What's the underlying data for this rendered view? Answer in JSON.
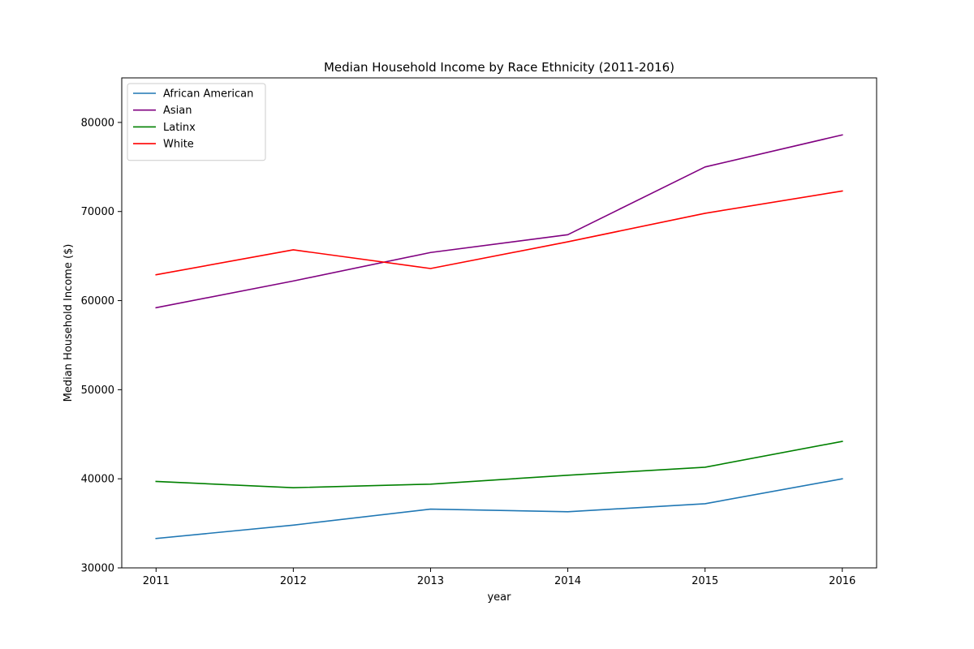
{
  "chart_data": {
    "type": "line",
    "title": "Median Household Income by Race Ethnicity (2011-2016)",
    "xlabel": "year",
    "ylabel": "Median Household Income ($)",
    "x": [
      2011,
      2012,
      2013,
      2014,
      2015,
      2016
    ],
    "x_tick_labels": [
      "2011",
      "2012",
      "2013",
      "2014",
      "2015",
      "2016"
    ],
    "xlim": [
      2010.75,
      2016.25
    ],
    "ylim": [
      30000,
      85000
    ],
    "y_ticks": [
      30000,
      40000,
      50000,
      60000,
      70000,
      80000
    ],
    "y_tick_labels": [
      "30000",
      "40000",
      "50000",
      "60000",
      "70000",
      "80000"
    ],
    "grid": false,
    "legend_position": "upper-left",
    "series": [
      {
        "name": "African American",
        "color": "#1f77b4",
        "values": [
          33300,
          34800,
          36600,
          36300,
          37200,
          40000
        ]
      },
      {
        "name": "Asian",
        "color": "#800080",
        "values": [
          59200,
          62200,
          65400,
          67400,
          75000,
          78600
        ]
      },
      {
        "name": "Latinx",
        "color": "#008000",
        "values": [
          39700,
          39000,
          39400,
          40400,
          41300,
          44200
        ]
      },
      {
        "name": "White",
        "color": "#ff0000",
        "values": [
          62900,
          65700,
          63600,
          66600,
          69800,
          72300
        ]
      }
    ]
  }
}
